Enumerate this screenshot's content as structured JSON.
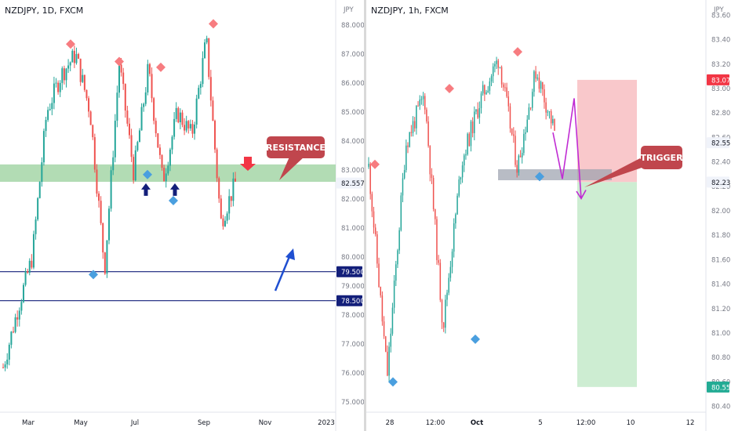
{
  "charts": [
    {
      "title": "NZDJPY, 1D, FXCM",
      "currency": "JPY",
      "ylim": [
        74.6,
        88.6
      ],
      "y_ticks": [
        "75.000",
        "76.000",
        "77.000",
        "78.000",
        "79.000",
        "80.000",
        "81.000",
        "82.000",
        "83.000",
        "84.000",
        "85.000",
        "86.000",
        "87.000",
        "88.000"
      ],
      "x_ticks": [
        "Mar",
        "May",
        "Jul",
        "Sep",
        "Nov",
        "2023"
      ],
      "price_labels": [
        {
          "text": "82.557",
          "value": 82.557,
          "bg": "#f0f3fa",
          "fg": "#131722"
        },
        {
          "text": "79.500",
          "value": 79.5,
          "bg": "#131f7a",
          "fg": "#ffffff"
        },
        {
          "text": "78.500",
          "value": 78.5,
          "bg": "#131f7a",
          "fg": "#ffffff"
        }
      ],
      "annotations": [
        {
          "name": "resistance-callout",
          "text": "RESISTANCE"
        }
      ]
    },
    {
      "title": "NZDJPY, 1h, FXCM",
      "currency": "JPY",
      "ylim": [
        80.34,
        83.66
      ],
      "y_ticks": [
        "80.400",
        "80.600",
        "80.800",
        "81.000",
        "81.200",
        "81.400",
        "81.600",
        "81.800",
        "82.000",
        "82.200",
        "82.400",
        "82.600",
        "82.800",
        "83.000",
        "83.200",
        "83.400",
        "83.600"
      ],
      "x_ticks": [
        "28",
        "12:00",
        "Oct",
        "5",
        "12:00",
        "10",
        "12"
      ],
      "price_labels": [
        {
          "text": "83.071",
          "value": 83.071,
          "bg": "#f23645",
          "fg": "#ffffff"
        },
        {
          "text": "82.557",
          "value": 82.557,
          "bg": "#f0f3fa",
          "fg": "#131722"
        },
        {
          "text": "82.235",
          "value": 82.235,
          "bg": "#f0f3fa",
          "fg": "#131722"
        },
        {
          "text": "80.559",
          "value": 80.559,
          "bg": "#22ab94",
          "fg": "#ffffff"
        }
      ],
      "annotations": [
        {
          "name": "trigger-callout",
          "text": "TRIGGER"
        }
      ]
    }
  ],
  "chart_data": [
    {
      "type": "candlestick",
      "title": "NZDJPY, 1D, FXCM",
      "ylabel": "JPY",
      "ylim": [
        74.6,
        88.6
      ],
      "key_points": [
        {
          "x": "Jan",
          "y": 76.2
        },
        {
          "x": "Feb",
          "y": 78.2
        },
        {
          "x": "Mar",
          "y": 80.0
        },
        {
          "x": "Mar",
          "y": 85.0
        },
        {
          "x": "Apr",
          "y": 86.3
        },
        {
          "x": "Apr",
          "y": 87.0
        },
        {
          "x": "May",
          "y": 85.0
        },
        {
          "x": "May",
          "y": 79.6
        },
        {
          "x": "Jun",
          "y": 86.7
        },
        {
          "x": "Jun",
          "y": 82.9
        },
        {
          "x": "Jul",
          "y": 86.5
        },
        {
          "x": "Jul",
          "y": 82.6
        },
        {
          "x": "Aug",
          "y": 85.0
        },
        {
          "x": "Aug",
          "y": 84.2
        },
        {
          "x": "Sep",
          "y": 87.5
        },
        {
          "x": "Sep",
          "y": 81.2
        },
        {
          "x": "Oct",
          "y": 82.557
        }
      ],
      "levels": [
        {
          "type": "zone",
          "label": "resistance",
          "from": 82.6,
          "to": 83.2
        },
        {
          "type": "line",
          "value": 79.5
        },
        {
          "type": "line",
          "value": 78.5
        }
      ],
      "current_price": 82.557
    },
    {
      "type": "candlestick",
      "title": "NZDJPY, 1h, FXCM",
      "ylabel": "JPY",
      "ylim": [
        80.34,
        83.66
      ],
      "key_points": [
        {
          "x": "27",
          "y": 82.36
        },
        {
          "x": "27",
          "y": 80.65
        },
        {
          "x": "28",
          "y": 82.55
        },
        {
          "x": "29",
          "y": 82.95
        },
        {
          "x": "30",
          "y": 81.05
        },
        {
          "x": "Oct",
          "y": 82.4
        },
        {
          "x": "3",
          "y": 82.9
        },
        {
          "x": "4",
          "y": 83.25
        },
        {
          "x": "4",
          "y": 82.35
        },
        {
          "x": "5",
          "y": 83.15
        },
        {
          "x": "6",
          "y": 82.65
        }
      ],
      "trade_setup": {
        "entry": 82.235,
        "stop": 83.071,
        "target": 80.559,
        "trigger_level": 82.3
      },
      "current_price": 82.557
    }
  ]
}
